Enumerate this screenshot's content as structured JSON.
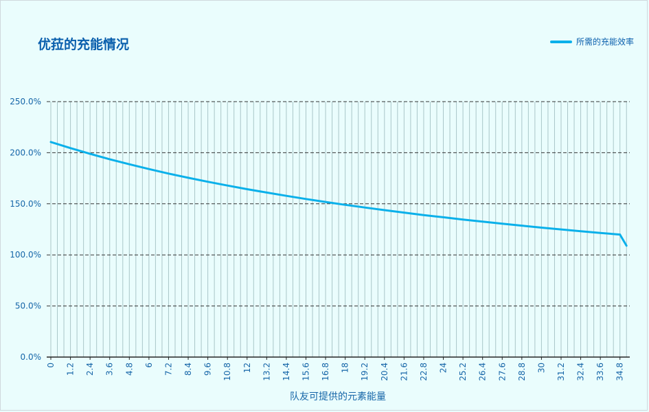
{
  "chart_data": {
    "type": "line",
    "title": "优菈的充能情况",
    "xlabel": "队友可提供的元素能量",
    "ylabel": "",
    "ylim": [
      0,
      250
    ],
    "y_ticks": [
      "0.0%",
      "50.0%",
      "100.0%",
      "150.0%",
      "200.0%",
      "250.0%"
    ],
    "x_tick_labels": [
      "0",
      "1.2",
      "2.4",
      "3.6",
      "4.8",
      "6",
      "7.2",
      "8.4",
      "9.6",
      "10.8",
      "12",
      "13.2",
      "14.4",
      "15.6",
      "16.8",
      "18",
      "19.2",
      "20.4",
      "21.6",
      "22.8",
      "24",
      "25.2",
      "26.4",
      "27.6",
      "28.8",
      "30",
      "31.2",
      "32.4",
      "33.6",
      "34.8"
    ],
    "legend": {
      "position": "top-right"
    },
    "grid": {
      "horizontal": "dashed",
      "vertical": true
    },
    "colors": {
      "line": "#0ab0ea",
      "grid_h": "#333333",
      "grid_v": "#a9c6c8"
    },
    "series": [
      {
        "name": "所需的充能效率",
        "x": [
          0,
          1.2,
          2.4,
          3.6,
          4.8,
          6,
          7.2,
          8.4,
          9.6,
          10.8,
          12,
          13.2,
          14.4,
          15.6,
          16.8,
          18,
          19.2,
          20.4,
          21.6,
          22.8,
          24,
          25.2,
          26.4,
          27.6,
          28.8,
          30,
          31.2,
          32.4,
          33.6,
          34.8,
          35.2
        ],
        "values": [
          210.5,
          204.5,
          198.9,
          193.6,
          188.7,
          184.0,
          179.6,
          175.5,
          171.6,
          167.9,
          164.3,
          161.0,
          157.8,
          154.7,
          151.8,
          149.0,
          146.4,
          143.8,
          141.4,
          139.0,
          136.8,
          134.6,
          132.5,
          130.5,
          128.6,
          126.7,
          124.9,
          123.2,
          121.5,
          119.9,
          109
        ]
      }
    ]
  }
}
